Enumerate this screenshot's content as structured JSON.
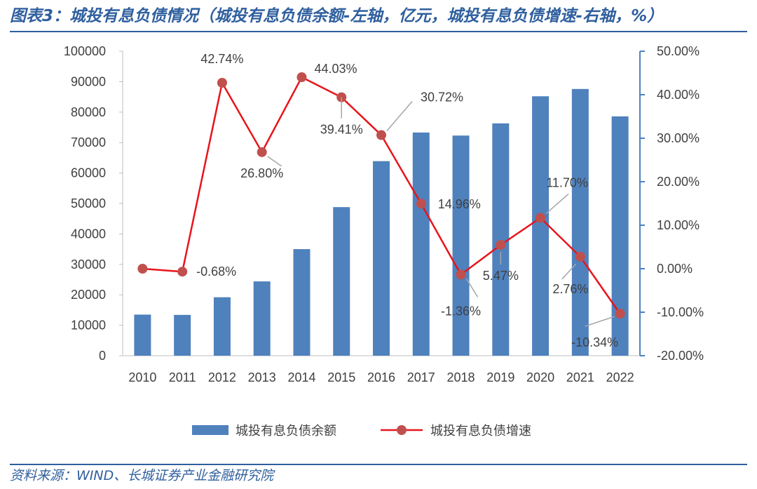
{
  "header": {
    "title": "图表3：城投有息负债情况（城投有息负债余额-左轴，亿元，城投有息负债增速-右轴，%）"
  },
  "footer": {
    "source": "资料来源：WIND、长城证券产业金融研究院"
  },
  "colors": {
    "bar": "#4f81bd",
    "line": "#e8141b",
    "marker": "#c0504d",
    "axis_right": "#4f81bd",
    "title": "#2f5f9e"
  },
  "chart_data": {
    "type": "bar+line",
    "categories": [
      "2010",
      "2011",
      "2012",
      "2013",
      "2014",
      "2015",
      "2016",
      "2017",
      "2018",
      "2019",
      "2020",
      "2021",
      "2022"
    ],
    "series": [
      {
        "name": "城投有息负债余额",
        "type": "bar",
        "axis": "left",
        "values": [
          13500,
          13400,
          19200,
          24400,
          35000,
          48800,
          63900,
          73300,
          72300,
          76300,
          85200,
          87600,
          78600
        ]
      },
      {
        "name": "城投有息负债增速",
        "type": "line",
        "axis": "right",
        "values": [
          0.0,
          -0.68,
          42.74,
          26.8,
          44.03,
          39.41,
          30.72,
          14.96,
          -1.36,
          5.47,
          11.7,
          2.76,
          -10.34
        ],
        "labels": [
          "",
          "-0.68%",
          "42.74%",
          "26.80%",
          "44.03%",
          "39.41%",
          "30.72%",
          "14.96%",
          "-1.36%",
          "5.47%",
          "11.70%",
          "2.76%",
          "-10.34%"
        ]
      }
    ],
    "y_left": {
      "ylim": [
        0,
        100000
      ],
      "ticks": [
        "0",
        "10000",
        "20000",
        "30000",
        "40000",
        "50000",
        "60000",
        "70000",
        "80000",
        "90000",
        "100000"
      ]
    },
    "y_right": {
      "ylim": [
        -20,
        50
      ],
      "ticks": [
        "-20.00%",
        "-10.00%",
        "0.00%",
        "10.00%",
        "20.00%",
        "30.00%",
        "40.00%",
        "50.00%"
      ]
    },
    "grid": false,
    "legend": "bottom"
  }
}
